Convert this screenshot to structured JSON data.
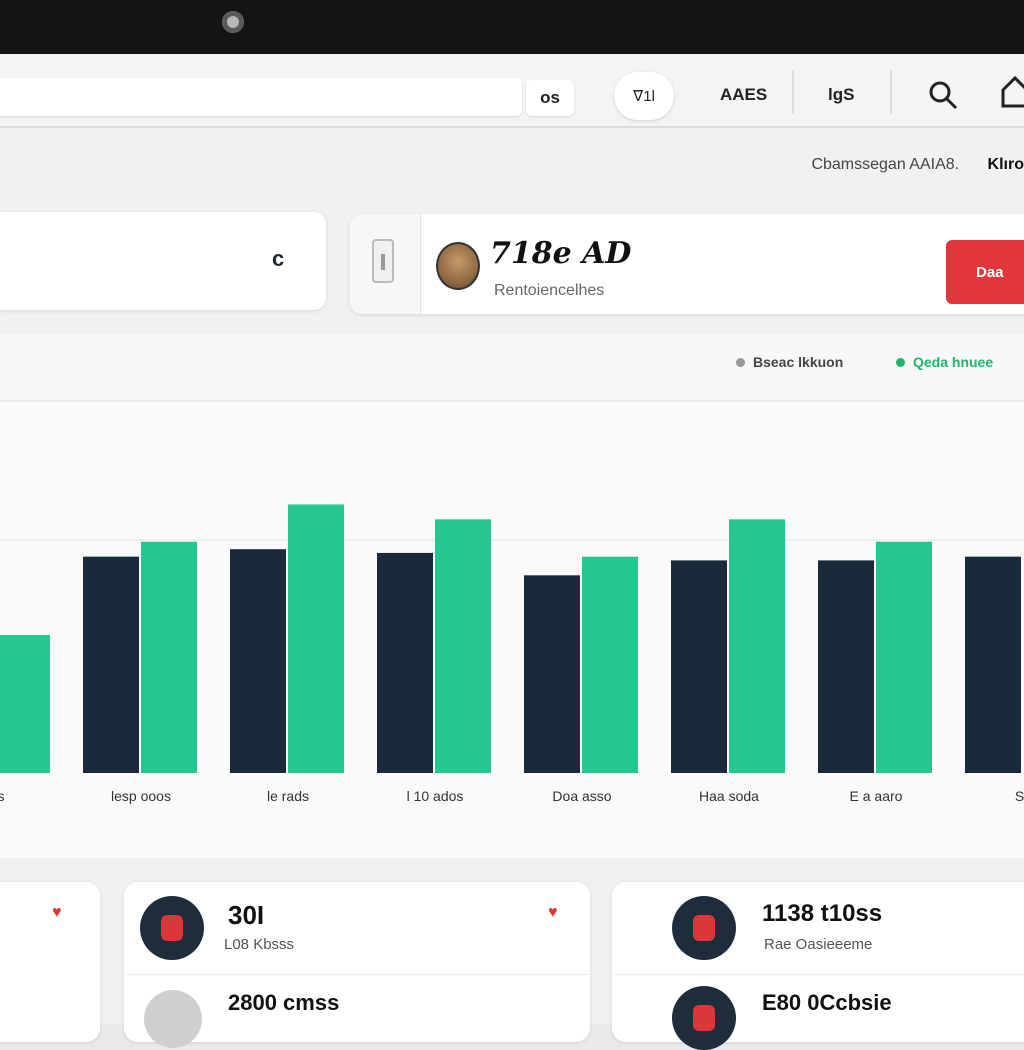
{
  "toolbar": {
    "search_placeholder": "",
    "os_label": "os",
    "pill_label": "ᐁ1l",
    "tab1": "AAES",
    "tab2": "lgS"
  },
  "subheader": {
    "caption": "Cbamssegan AAIA8.",
    "link": "Klıro"
  },
  "card_left": {
    "value": "c"
  },
  "profile_card": {
    "title": "718e AD",
    "subtitle": "Rentoiencelhes"
  },
  "action_button": {
    "label": "Daa"
  },
  "legend": [
    {
      "label": "Bseac lkkuon",
      "color": "#e8607a"
    },
    {
      "label": "Qeda hnuee",
      "color": "#1fb56a"
    }
  ],
  "chart_data": {
    "type": "bar",
    "categories": [
      "lles",
      "lesp ooos",
      "le rads",
      "l 10 ados",
      "Doa asso",
      "Haa soda",
      "E a aaro",
      "S l"
    ],
    "series": [
      {
        "name": "Bseac lkkuon",
        "color": "#1b2a3a",
        "values": [
          null,
          58,
          60,
          59,
          53,
          57,
          57,
          58
        ]
      },
      {
        "name": "Qeda hnuee",
        "color": "#25c690",
        "values": [
          37,
          62,
          72,
          68,
          58,
          68,
          62,
          null
        ]
      }
    ],
    "ylim": [
      0,
      100
    ]
  },
  "stat_cards": [
    {
      "big": "30I",
      "small": "L08 Kbsss"
    },
    {
      "big": "2800 cmss",
      "small": ""
    },
    {
      "big": "1138 t10ss",
      "small": "Rae Oasieeeme"
    },
    {
      "big": "E80 0Ccbsie",
      "small": ""
    }
  ],
  "colors": {
    "accent_red": "#e1373a",
    "bar_dark": "#1b2a3a",
    "bar_green": "#25c690"
  }
}
